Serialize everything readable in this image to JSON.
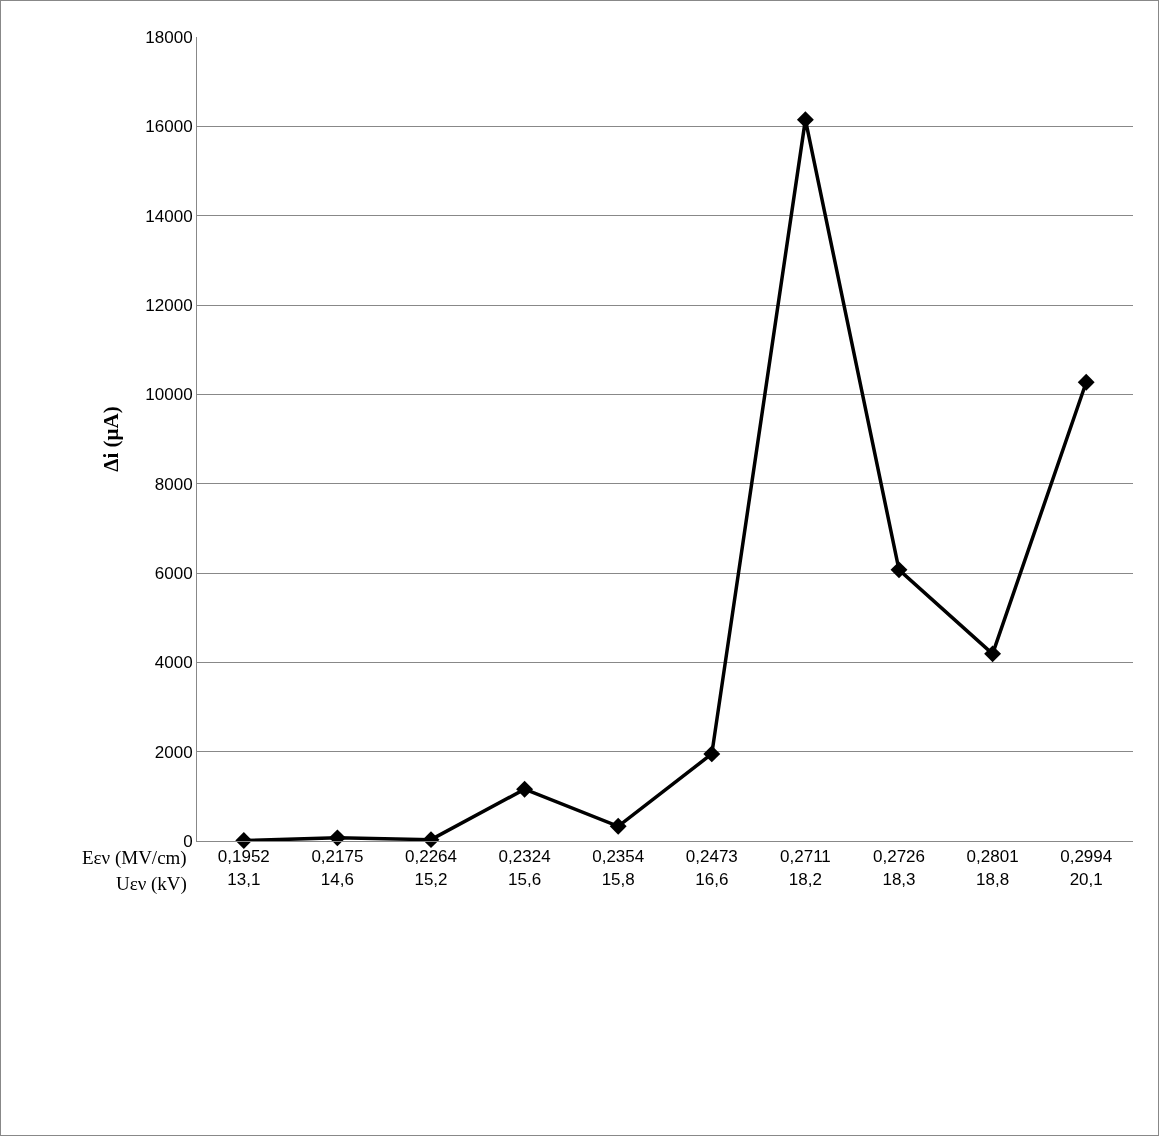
{
  "chart_data": {
    "type": "line",
    "ylabel": "Δi (μA)",
    "categories": [
      "0,1952\n13,1",
      "0,2175\n14,6",
      "0,2264\n15,2",
      "0,2324\n15,6",
      "0,2354\n15,8",
      "0,2473\n16,6",
      "0,2711\n18,2",
      "0,2726\n18,3",
      "0,2801\n18,8",
      "0,2994\n20,1"
    ],
    "series": [
      {
        "color": "#000000",
        "values": [
          10,
          70,
          30,
          1160,
          330,
          1950,
          16150,
          6070,
          4190,
          10270
        ]
      }
    ],
    "annotations": [
      "Eεν (MV/cm)",
      "Uεν (kV)"
    ],
    "ylim": [
      0,
      18000
    ],
    "yticks": [
      0,
      2000,
      4000,
      6000,
      8000,
      10000,
      12000,
      14000,
      16000,
      18000
    ],
    "grid": "y",
    "marker": "diamond",
    "line_style": "solid"
  }
}
